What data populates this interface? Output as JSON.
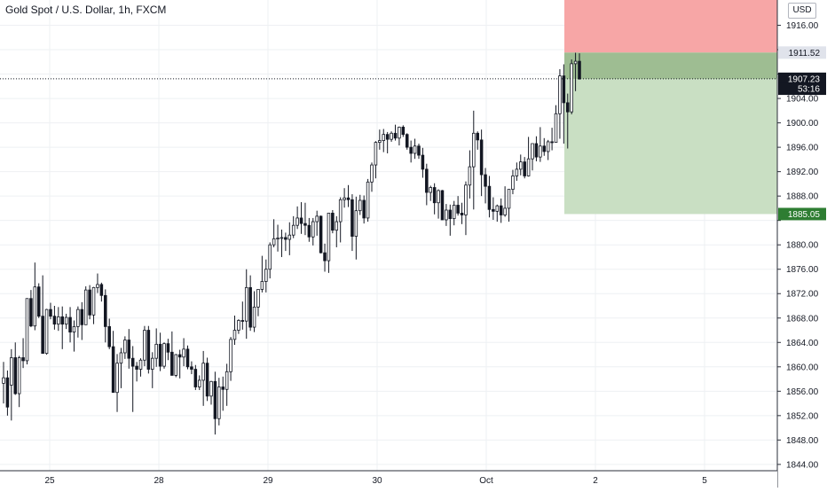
{
  "header": {
    "title": "Gold Spot / U.S. Dollar, 1h, FXCM",
    "currency": "USD"
  },
  "colors": {
    "grid": "#eef0f3",
    "candle": "#131722",
    "candle_up_fill": "#ffffff",
    "stop_zone": "#f7a6a6",
    "target_zone": "#c9dfc3",
    "entry_zone_overlap": "#9ebd92",
    "target_badge": "#2e7d32",
    "neutral_badge": "#131722"
  },
  "chart_data": {
    "type": "candlestick",
    "symbol": "Gold Spot / U.S. Dollar",
    "interval": "1h",
    "source": "FXCM",
    "ylim": [
      1842,
      1920
    ],
    "y_ticks": [
      1916,
      1912,
      1908,
      1904,
      1900,
      1896,
      1892,
      1888,
      1884,
      1880,
      1876,
      1872,
      1868,
      1864,
      1860,
      1856,
      1852,
      1848,
      1844
    ],
    "y_tick_labels": [
      "1916.00",
      "",
      "",
      "1904.00",
      "1900.00",
      "1896.00",
      "1892.00",
      "1888.00",
      "",
      "1880.00",
      "1876.00",
      "1872.00",
      "1868.00",
      "1864.00",
      "1860.00",
      "1856.00",
      "1852.00",
      "1848.00",
      "1844.00"
    ],
    "x_ticks": [
      {
        "label": "25",
        "x": 7
      },
      {
        "label": "28",
        "x": 43
      },
      {
        "label": "29",
        "x": 79
      },
      {
        "label": "30",
        "x": 115
      },
      {
        "label": "Oct",
        "x": 151
      },
      {
        "label": "2",
        "x": 187
      },
      {
        "label": "5",
        "x": 223
      }
    ],
    "x_range": [
      -9,
      250
    ],
    "price_labels": [
      {
        "label": "1911.52",
        "value": 1911.52,
        "style": "grey"
      },
      {
        "label": "1907.23",
        "value": 1907.23,
        "style": "dark"
      },
      {
        "label": "53:16",
        "value": 1905.6,
        "style": "dark"
      },
      {
        "label": "1885.05",
        "value": 1885.05,
        "style": "green"
      }
    ],
    "current_price": 1907.23,
    "position": {
      "entry": 1911.52,
      "target": 1885.05,
      "stop": 1920,
      "start_index": 183
    },
    "candles": [
      [
        1857.3,
        1860.8,
        1854.0,
        1858.2
      ],
      [
        1858.2,
        1859.4,
        1852.0,
        1853.4
      ],
      [
        1857.0,
        1862.9,
        1851.2,
        1861.5
      ],
      [
        1861.5,
        1864.0,
        1855.4,
        1855.6
      ],
      [
        1855.6,
        1861.8,
        1853.4,
        1861.5
      ],
      [
        1861.5,
        1864.7,
        1859.8,
        1861.0
      ],
      [
        1861.0,
        1871.2,
        1860.4,
        1871.2
      ],
      [
        1871.2,
        1872.6,
        1866.5,
        1866.7
      ],
      [
        1866.7,
        1877.1,
        1866.0,
        1873.1
      ],
      [
        1873.1,
        1873.7,
        1868.0,
        1868.3
      ],
      [
        1868.3,
        1875.0,
        1862.2,
        1862.2
      ],
      [
        1862.2,
        1869.5,
        1862.0,
        1869.4
      ],
      [
        1869.4,
        1870.5,
        1867.8,
        1868.3
      ],
      [
        1868.3,
        1870.0,
        1866.1,
        1867.0
      ],
      [
        1867.0,
        1869.8,
        1865.9,
        1868.2
      ],
      [
        1868.2,
        1869.9,
        1862.9,
        1867.0
      ],
      [
        1867.0,
        1868.7,
        1866.2,
        1868.1
      ],
      [
        1868.1,
        1869.8,
        1864.0,
        1865.7
      ],
      [
        1865.7,
        1867.6,
        1862.5,
        1866.6
      ],
      [
        1866.6,
        1869.9,
        1864.8,
        1869.4
      ],
      [
        1869.4,
        1870.6,
        1864.4,
        1866.9
      ],
      [
        1866.9,
        1873.2,
        1866.9,
        1872.6
      ],
      [
        1872.6,
        1873.4,
        1867.8,
        1868.5
      ],
      [
        1868.5,
        1873.1,
        1867.0,
        1873.0
      ],
      [
        1873.0,
        1875.3,
        1872.1,
        1873.5
      ],
      [
        1873.5,
        1873.8,
        1870.7,
        1871.7
      ],
      [
        1871.7,
        1872.7,
        1864.0,
        1866.6
      ],
      [
        1866.6,
        1867.9,
        1862.9,
        1863.3
      ],
      [
        1863.3,
        1865.9,
        1855.8,
        1855.8
      ],
      [
        1855.8,
        1862.1,
        1852.6,
        1860.6
      ],
      [
        1860.6,
        1863.1,
        1856.5,
        1862.3
      ],
      [
        1862.3,
        1865.0,
        1861.3,
        1864.4
      ],
      [
        1864.4,
        1866.2,
        1859.7,
        1861.4
      ],
      [
        1861.4,
        1863.4,
        1852.6,
        1860.1
      ],
      [
        1860.1,
        1860.8,
        1857.6,
        1859.6
      ],
      [
        1859.6,
        1861.4,
        1858.4,
        1861.1
      ],
      [
        1861.1,
        1866.7,
        1860.1,
        1866.0
      ],
      [
        1866.0,
        1866.7,
        1858.9,
        1859.6
      ],
      [
        1859.6,
        1862.4,
        1856.5,
        1861.4
      ],
      [
        1861.4,
        1866.3,
        1860.0,
        1863.7
      ],
      [
        1863.7,
        1865.6,
        1859.3,
        1860.1
      ],
      [
        1860.1,
        1864.0,
        1859.7,
        1863.8
      ],
      [
        1863.8,
        1864.6,
        1861.1,
        1862.4
      ],
      [
        1862.4,
        1865.8,
        1858.6,
        1858.6
      ],
      [
        1858.6,
        1862.1,
        1858.3,
        1862.0
      ],
      [
        1862.0,
        1862.8,
        1858.1,
        1861.6
      ],
      [
        1861.6,
        1864.7,
        1860.1,
        1862.9
      ],
      [
        1862.9,
        1863.5,
        1859.6,
        1860.0
      ],
      [
        1860.0,
        1860.9,
        1858.8,
        1859.6
      ],
      [
        1859.6,
        1860.3,
        1856.2,
        1856.7
      ],
      [
        1856.7,
        1858.6,
        1856.2,
        1857.8
      ],
      [
        1857.8,
        1862.6,
        1853.6,
        1860.6
      ],
      [
        1860.6,
        1861.5,
        1854.4,
        1855.2
      ],
      [
        1855.2,
        1857.7,
        1853.8,
        1857.6
      ],
      [
        1857.6,
        1859.2,
        1848.9,
        1851.5
      ],
      [
        1851.5,
        1858.2,
        1850.4,
        1856.7
      ],
      [
        1856.7,
        1858.4,
        1852.8,
        1856.3
      ],
      [
        1856.3,
        1860.5,
        1853.6,
        1859.2
      ],
      [
        1859.2,
        1864.9,
        1857.7,
        1864.5
      ],
      [
        1864.5,
        1868.4,
        1863.6,
        1866.0
      ],
      [
        1866.0,
        1867.8,
        1865.4,
        1867.6
      ],
      [
        1867.6,
        1870.7,
        1866.1,
        1867.5
      ],
      [
        1867.5,
        1876.0,
        1864.6,
        1873.0
      ],
      [
        1873.0,
        1875.0,
        1865.9,
        1866.5
      ],
      [
        1866.5,
        1872.4,
        1865.7,
        1869.8
      ],
      [
        1869.8,
        1872.7,
        1868.3,
        1872.7
      ],
      [
        1872.7,
        1878.2,
        1872.2,
        1874.0
      ],
      [
        1874.0,
        1877.6,
        1872.2,
        1876.0
      ],
      [
        1876.0,
        1880.4,
        1874.5,
        1880.0
      ],
      [
        1880.0,
        1884.2,
        1879.6,
        1881.0
      ],
      [
        1881.0,
        1883.3,
        1878.9,
        1881.1
      ],
      [
        1881.1,
        1882.5,
        1878.0,
        1881.2
      ],
      [
        1881.2,
        1882.0,
        1879.0,
        1880.9
      ],
      [
        1880.9,
        1883.7,
        1878.3,
        1881.6
      ],
      [
        1881.6,
        1884.7,
        1881.1,
        1883.2
      ],
      [
        1883.2,
        1886.3,
        1882.6,
        1884.4
      ],
      [
        1884.4,
        1887.0,
        1881.8,
        1883.5
      ],
      [
        1883.5,
        1886.9,
        1881.6,
        1883.2
      ],
      [
        1883.2,
        1884.4,
        1880.5,
        1881.3
      ],
      [
        1881.3,
        1884.4,
        1879.9,
        1883.8
      ],
      [
        1883.8,
        1885.6,
        1881.5,
        1884.7
      ],
      [
        1884.7,
        1884.8,
        1878.6,
        1878.7
      ],
      [
        1878.7,
        1880.2,
        1875.6,
        1877.4
      ],
      [
        1877.4,
        1885.2,
        1875.4,
        1885.2
      ],
      [
        1885.2,
        1885.7,
        1881.9,
        1882.4
      ],
      [
        1882.4,
        1884.7,
        1879.6,
        1883.8
      ],
      [
        1883.8,
        1887.8,
        1880.4,
        1887.4
      ],
      [
        1887.4,
        1889.3,
        1886.1,
        1887.7
      ],
      [
        1887.7,
        1889.8,
        1886.2,
        1887.4
      ],
      [
        1887.4,
        1888.3,
        1879.0,
        1881.4
      ],
      [
        1881.4,
        1887.9,
        1877.6,
        1885.6
      ],
      [
        1885.6,
        1888.2,
        1884.9,
        1887.3
      ],
      [
        1887.3,
        1888.1,
        1883.5,
        1884.4
      ],
      [
        1884.4,
        1890.8,
        1883.8,
        1890.3
      ],
      [
        1890.3,
        1893.5,
        1888.7,
        1893.1
      ],
      [
        1893.1,
        1897.0,
        1890.9,
        1896.8
      ],
      [
        1896.8,
        1898.9,
        1895.6,
        1897.1
      ],
      [
        1897.1,
        1899.0,
        1895.2,
        1898.1
      ],
      [
        1898.1,
        1898.5,
        1895.0,
        1897.3
      ],
      [
        1897.3,
        1898.6,
        1896.9,
        1898.3
      ],
      [
        1898.3,
        1899.7,
        1897.1,
        1897.5
      ],
      [
        1897.5,
        1899.4,
        1896.3,
        1899.3
      ],
      [
        1899.3,
        1899.6,
        1897.7,
        1898.1
      ],
      [
        1898.1,
        1898.3,
        1895.6,
        1896.0
      ],
      [
        1896.0,
        1897.1,
        1893.5,
        1895.0
      ],
      [
        1895.0,
        1897.4,
        1894.1,
        1896.2
      ],
      [
        1896.2,
        1896.6,
        1894.1,
        1894.7
      ],
      [
        1894.7,
        1895.9,
        1891.0,
        1892.4
      ],
      [
        1892.4,
        1893.3,
        1886.5,
        1888.6
      ],
      [
        1888.6,
        1889.7,
        1887.2,
        1889.4
      ],
      [
        1889.4,
        1890.1,
        1885.0,
        1886.9
      ],
      [
        1886.9,
        1889.1,
        1884.3,
        1888.9
      ],
      [
        1888.9,
        1889.0,
        1884.1,
        1884.1
      ],
      [
        1884.1,
        1886.7,
        1883.1,
        1885.7
      ],
      [
        1885.7,
        1886.6,
        1881.5,
        1884.3
      ],
      [
        1884.3,
        1887.2,
        1883.2,
        1886.5
      ],
      [
        1886.5,
        1888.0,
        1884.8,
        1885.2
      ],
      [
        1885.2,
        1886.9,
        1883.4,
        1884.9
      ],
      [
        1884.9,
        1890.4,
        1881.6,
        1889.8
      ],
      [
        1889.8,
        1895.5,
        1887.6,
        1892.8
      ],
      [
        1892.8,
        1902.0,
        1885.8,
        1898.3
      ],
      [
        1898.3,
        1898.6,
        1895.6,
        1897.2
      ],
      [
        1897.2,
        1898.9,
        1888.0,
        1891.5
      ],
      [
        1891.5,
        1892.6,
        1886.8,
        1889.6
      ],
      [
        1889.6,
        1891.3,
        1884.5,
        1885.8
      ],
      [
        1885.8,
        1887.8,
        1884.1,
        1885.5
      ],
      [
        1885.5,
        1886.6,
        1883.8,
        1886.4
      ],
      [
        1886.4,
        1887.6,
        1883.6,
        1884.9
      ],
      [
        1884.9,
        1889.6,
        1884.6,
        1886.0
      ],
      [
        1886.0,
        1889.1,
        1883.8,
        1889.1
      ],
      [
        1889.1,
        1892.3,
        1888.3,
        1891.3
      ],
      [
        1891.3,
        1893.5,
        1890.5,
        1892.4
      ],
      [
        1892.4,
        1894.8,
        1891.4,
        1893.6
      ],
      [
        1893.6,
        1894.4,
        1890.9,
        1891.3
      ],
      [
        1891.3,
        1897.7,
        1891.2,
        1894.1
      ],
      [
        1894.1,
        1896.6,
        1892.2,
        1896.6
      ],
      [
        1896.6,
        1897.8,
        1893.7,
        1894.4
      ],
      [
        1894.4,
        1899.3,
        1893.6,
        1896.2
      ],
      [
        1896.2,
        1897.5,
        1894.6,
        1895.3
      ],
      [
        1895.3,
        1897.2,
        1893.9,
        1896.9
      ],
      [
        1896.9,
        1899.2,
        1895.5,
        1896.8
      ],
      [
        1896.8,
        1902.9,
        1896.8,
        1901.5
      ],
      [
        1901.5,
        1908.8,
        1897.4,
        1907.7
      ],
      [
        1907.7,
        1909.6,
        1896.6,
        1903.3
      ],
      [
        1903.3,
        1904.8,
        1895.8,
        1901.8
      ],
      [
        1901.8,
        1910.4,
        1901.4,
        1909.7
      ],
      [
        1909.7,
        1911.5,
        1905.2,
        1910.1
      ],
      [
        1910.1,
        1911.4,
        1907.1,
        1907.2
      ]
    ]
  }
}
